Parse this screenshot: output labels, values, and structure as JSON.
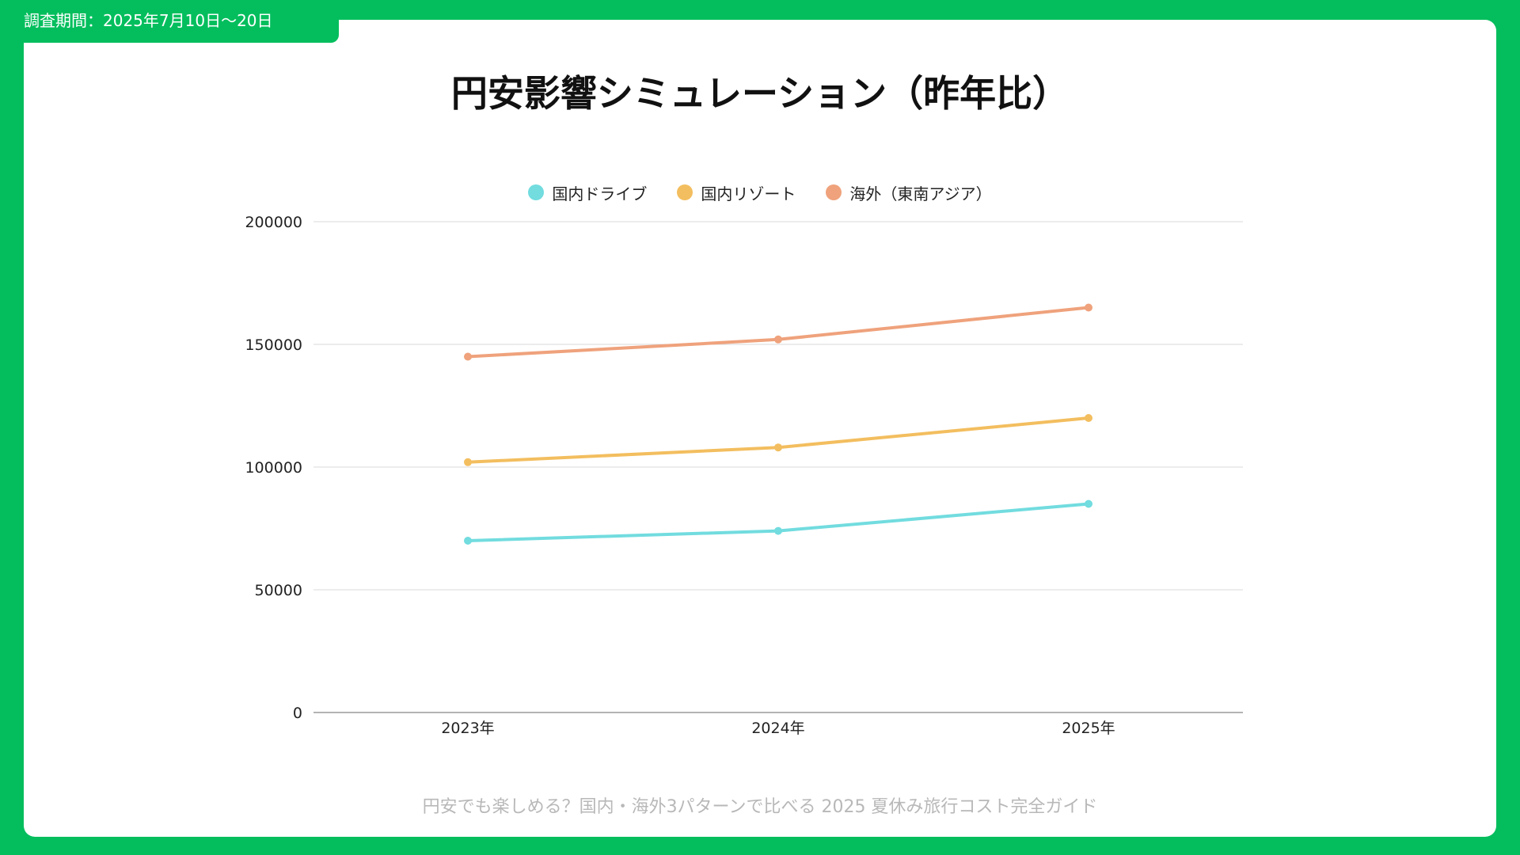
{
  "period_label": "調査期間：2025年7月10日〜20日",
  "footer": "円安でも楽しめる？国内・海外3パターンで比べる 2025 夏休み旅行コスト完全ガイド",
  "colors": {
    "frame_green": "#04BE5D",
    "gridline": "#D9D9D9",
    "axis": "#9A9A9A"
  },
  "chart_data": {
    "type": "line",
    "title": "円安影響シミュレーション（昨年比）",
    "xlabel": "",
    "ylabel": "",
    "categories": [
      "2023年",
      "2024年",
      "2025年"
    ],
    "ylim": [
      0,
      200000
    ],
    "yticks": [
      "0",
      "50000",
      "100000",
      "150000",
      "200000"
    ],
    "grid": true,
    "legend_position": "top-center",
    "series": [
      {
        "name": "国内ドライブ",
        "color": "#72DCDF",
        "values": [
          70000,
          74000,
          85000
        ]
      },
      {
        "name": "国内リゾート",
        "color": "#F3BE5F",
        "values": [
          102000,
          108000,
          120000
        ]
      },
      {
        "name": "海外（東南アジア）",
        "color": "#EFA27C",
        "values": [
          145000,
          152000,
          165000
        ]
      }
    ]
  }
}
